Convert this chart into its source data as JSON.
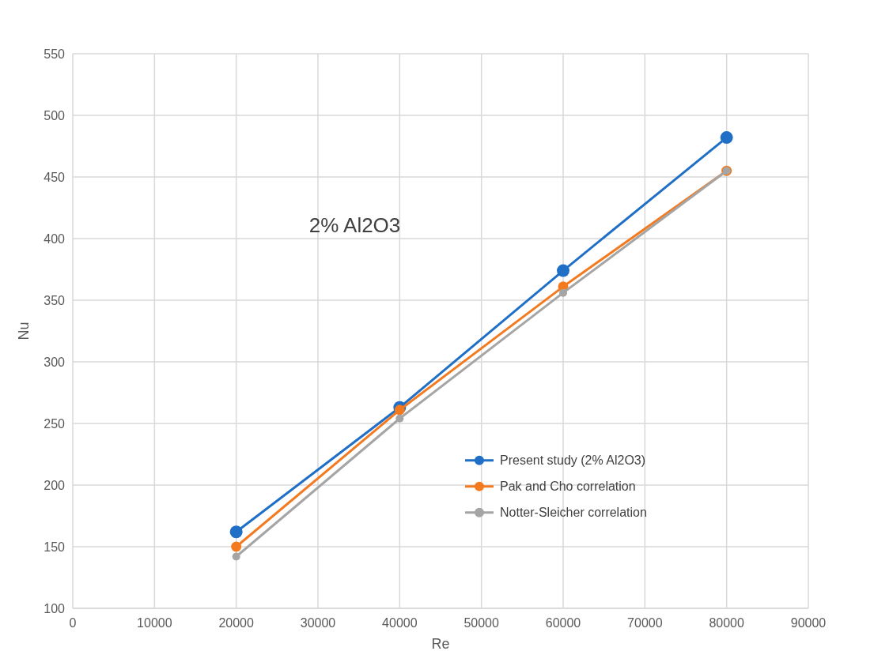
{
  "chart_data": {
    "type": "line",
    "xlabel": "Re",
    "ylabel": "Nu",
    "x": [
      20000,
      40000,
      60000,
      80000
    ],
    "series": [
      {
        "name": "Present study (2% Al2O3)",
        "color": "#1f6fc6",
        "values": [
          162,
          263,
          374,
          482
        ]
      },
      {
        "name": "Pak and Cho correlation",
        "color": "#f47a20",
        "values": [
          150,
          261,
          361,
          455
        ]
      },
      {
        "name": "Notter-Sleicher correlation",
        "color": "#a5a5a5",
        "values": [
          142,
          254,
          356,
          455
        ]
      }
    ],
    "xlim": [
      0,
      90000
    ],
    "xticks": [
      0,
      10000,
      20000,
      30000,
      40000,
      50000,
      60000,
      70000,
      80000,
      90000
    ],
    "ylim": [
      100,
      550
    ],
    "yticks": [
      100,
      150,
      200,
      250,
      300,
      350,
      400,
      450,
      500,
      550
    ],
    "annotations": [
      "2% Al2O3"
    ],
    "grid": true,
    "legend": "bottom right",
    "marker": "circle",
    "line_style": "solid"
  }
}
